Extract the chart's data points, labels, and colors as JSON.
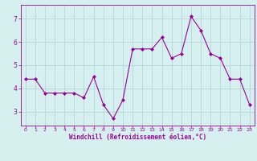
{
  "x": [
    0,
    1,
    2,
    3,
    4,
    5,
    6,
    7,
    8,
    9,
    10,
    11,
    12,
    13,
    14,
    15,
    16,
    17,
    18,
    19,
    20,
    21,
    22,
    23
  ],
  "y": [
    4.4,
    4.4,
    3.8,
    3.8,
    3.8,
    3.8,
    3.6,
    4.5,
    3.3,
    2.7,
    3.5,
    5.7,
    5.7,
    5.7,
    6.2,
    5.3,
    5.5,
    7.1,
    6.5,
    5.5,
    5.3,
    4.4,
    4.4,
    3.3
  ],
  "line_color": "#990099",
  "marker": "D",
  "marker_size": 2.0,
  "bg_color": "#d6f0f0",
  "grid_color": "#b8dada",
  "xlabel": "Windchill (Refroidissement éolien,°C)",
  "xlabel_color": "#990099",
  "tick_color": "#990099",
  "ylim": [
    2.4,
    7.6
  ],
  "xlim": [
    -0.5,
    23.5
  ],
  "yticks": [
    3,
    4,
    5,
    6,
    7
  ],
  "xticks": [
    0,
    1,
    2,
    3,
    4,
    5,
    6,
    7,
    8,
    9,
    10,
    11,
    12,
    13,
    14,
    15,
    16,
    17,
    18,
    19,
    20,
    21,
    22,
    23
  ],
  "spine_color": "#990099",
  "figsize": [
    3.2,
    2.0
  ],
  "dpi": 100
}
